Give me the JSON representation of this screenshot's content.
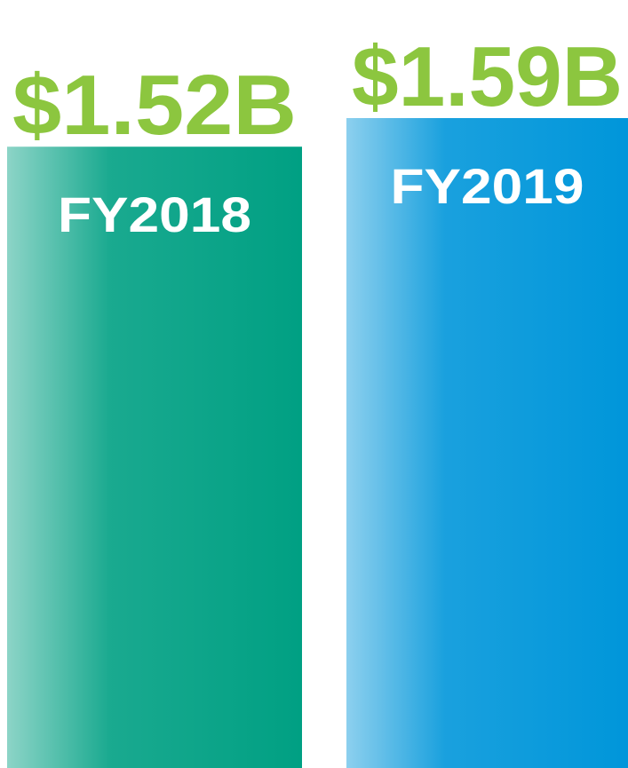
{
  "chart_data": {
    "type": "bar",
    "categories": [
      "FY2018",
      "FY2019"
    ],
    "values": [
      1.52,
      1.59
    ],
    "value_labels": [
      "$1.52B",
      "$1.59B"
    ],
    "colors": [
      "#00a083",
      "#0096da"
    ]
  }
}
